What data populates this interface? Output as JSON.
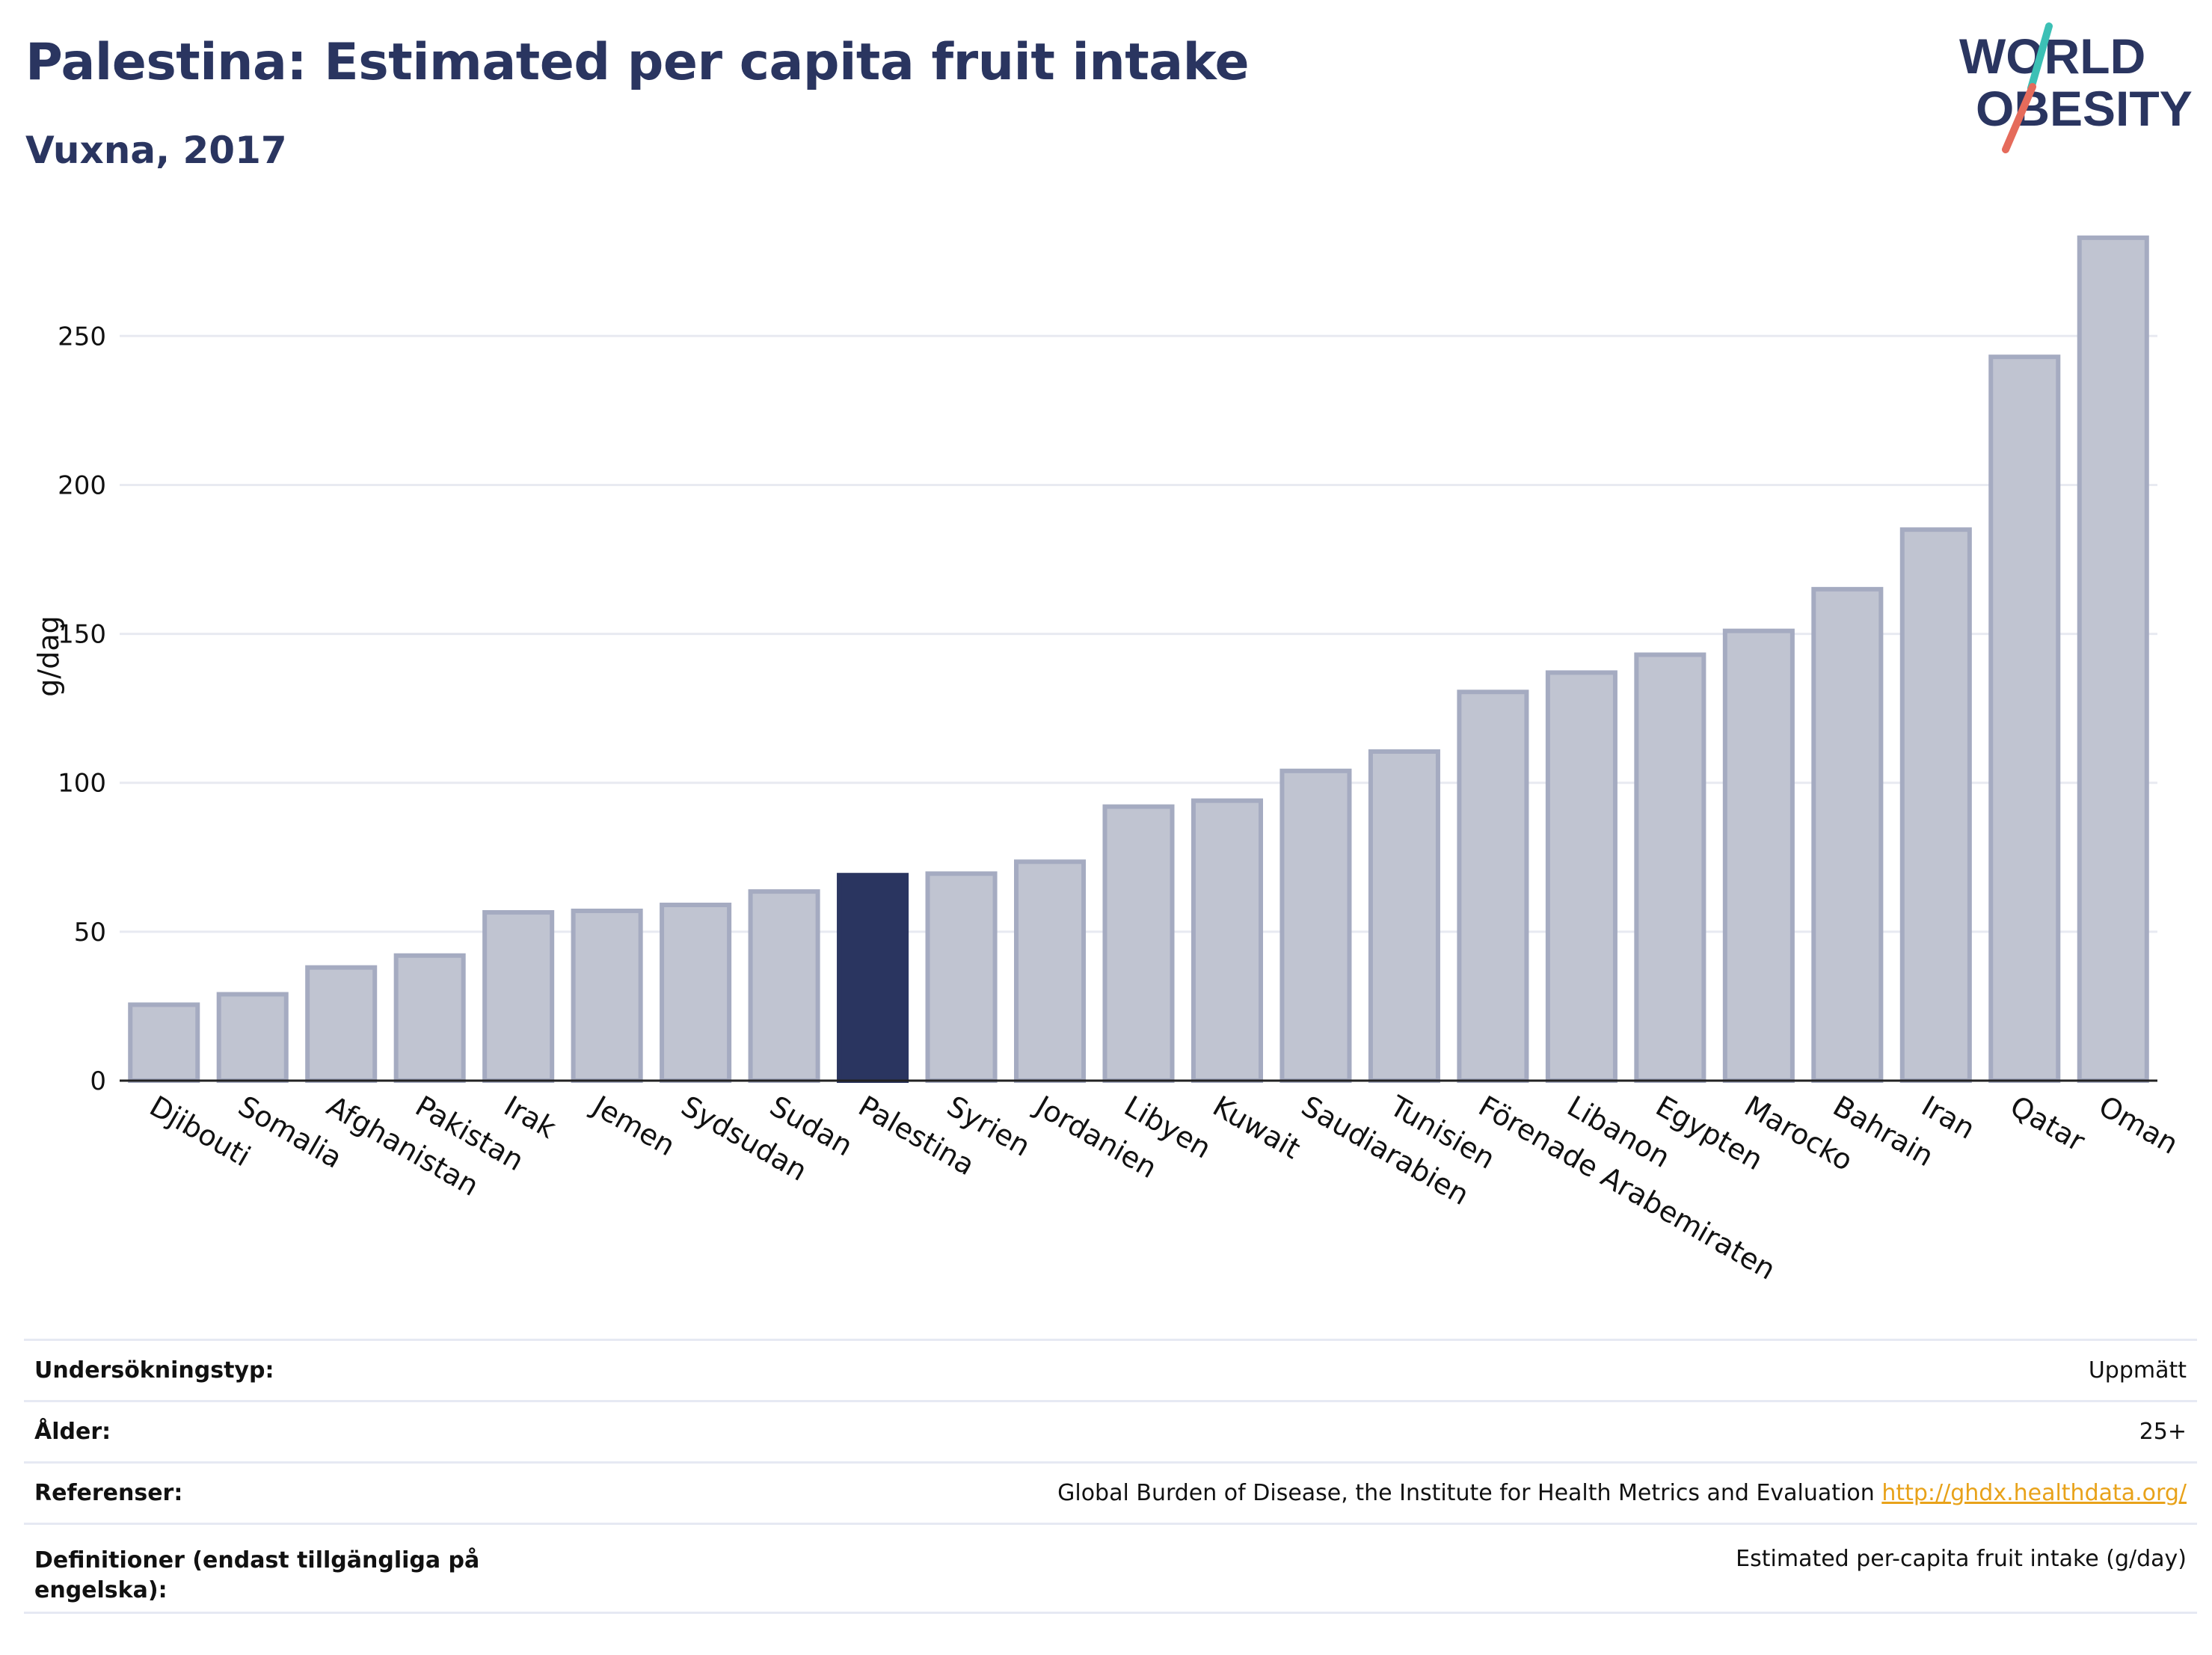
{
  "header": {
    "title": "Palestina: Estimated per capita fruit intake",
    "subtitle": "Vuxna, 2017"
  },
  "logo": {
    "line1": "WORLD",
    "line2": "OBESITY"
  },
  "chart_data": {
    "type": "bar",
    "title": "Palestina: Estimated per capita fruit intake",
    "subtitle": "Vuxna, 2017",
    "xlabel": "",
    "ylabel": "g/dag",
    "ylim": [
      0,
      290
    ],
    "yticks": [
      0,
      50,
      100,
      150,
      200,
      250
    ],
    "grid": true,
    "highlight": "Palestina",
    "colors": {
      "bar": "#c0c4d1",
      "bar_border": "#a5abc1",
      "highlight": "#2a3560",
      "grid": "#e8eaf1",
      "title": "#2a3560"
    },
    "categories": [
      "Djibouti",
      "Somalia",
      "Afghanistan",
      "Pakistan",
      "Irak",
      "Jemen",
      "Sydsudan",
      "Sudan",
      "Palestina",
      "Syrien",
      "Jordanien",
      "Libyen",
      "Kuwait",
      "Saudiarabien",
      "Tunisien",
      "Förenade Arabemiraten",
      "Libanon",
      "Egypten",
      "Marocko",
      "Bahrain",
      "Iran",
      "Qatar",
      "Oman"
    ],
    "values": [
      25.5,
      29,
      38,
      42,
      56.5,
      57,
      59,
      63.5,
      69,
      69.5,
      73.5,
      92,
      94,
      104,
      110.5,
      130.5,
      137,
      143,
      151,
      165,
      185,
      243,
      283
    ]
  },
  "info": [
    {
      "label": "Undersökningstyp:",
      "value": "Uppmätt"
    },
    {
      "label": "Ålder:",
      "value": "25+"
    },
    {
      "label": "Referenser:",
      "value": "Global Burden of Disease, the Institute for Health Metrics and Evaluation",
      "link": "http://ghdx.healthdata.org/"
    },
    {
      "label": "Definitioner (endast tillgängliga på engelska):",
      "value": "Estimated per-capita fruit intake (g/day)"
    }
  ]
}
